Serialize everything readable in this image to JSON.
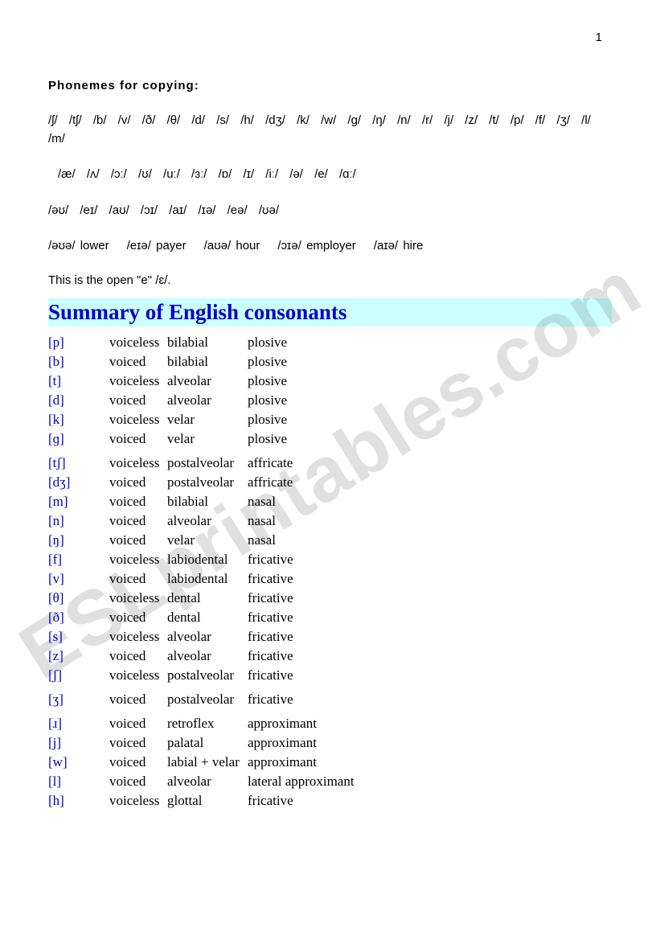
{
  "page_number": "1",
  "heading": "Phonemes for copying:",
  "consonant_phonemes": "/ʃ/   /tʃ/   /b/   /v/   /ð/   /θ/   /d/   /s/   /h/   /dʒ/   /k/   /w/   /g/   /ŋ/   /n/   /r/   /j/   /z/   /t/   /p/   /f/   /ʒ/   /l/   /m/",
  "vowel_phonemes": "/æ/   /ʌ/   /ɔː/   /ʊ/  /uː/   /ɜː/   /ɒ/   /ɪ/  /iː/   /ə/   /e/   /ɑː/",
  "diphthongs": "/əʊ/   /eɪ/   /aʊ/   /ɔɪ/   /aɪ/   /ɪə/   /eə/   /ʊə/",
  "triphthongs": [
    {
      "ph": "/əʊə/",
      "wd": "lower"
    },
    {
      "ph": "/eɪə/",
      "wd": "payer"
    },
    {
      "ph": "/aʊə/",
      "wd": "hour"
    },
    {
      "ph": "/ɔɪə/",
      "wd": "employer"
    },
    {
      "ph": "/aɪə/",
      "wd": "hire"
    }
  ],
  "open_e": "This is the open \"e\" /ɛ/.",
  "summary_title": "Summary of English consonants",
  "rows": [
    {
      "sym": "[p]",
      "voicing": "voiceless",
      "place": "bilabial",
      "manner": "plosive"
    },
    {
      "sym": "[b]",
      "voicing": "voiced",
      "place": "bilabial",
      "manner": "plosive"
    },
    {
      "sym": "[t]",
      "voicing": "voiceless",
      "place": "alveolar",
      "manner": "plosive"
    },
    {
      "sym": "[d]",
      "voicing": "voiced",
      "place": "alveolar",
      "manner": "plosive"
    },
    {
      "sym": "[k]",
      "voicing": "voiceless",
      "place": "velar",
      "manner": "plosive"
    },
    {
      "sym": "[ɡ]",
      "voicing": "voiced",
      "place": "velar",
      "manner": "plosive",
      "gap_after": true
    },
    {
      "sym": "[tʃ]",
      "voicing": "voiceless",
      "place": "postalveolar",
      "manner": "affricate"
    },
    {
      "sym": "[dʒ]",
      "voicing": "voiced",
      "place": "postalveolar",
      "manner": "affricate"
    },
    {
      "sym": "[m]",
      "voicing": "voiced",
      "place": "bilabial",
      "manner": "nasal"
    },
    {
      "sym": "[n]",
      "voicing": "voiced",
      "place": "alveolar",
      "manner": "nasal"
    },
    {
      "sym": "[ŋ]",
      "voicing": "voiced",
      "place": "velar",
      "manner": "nasal"
    },
    {
      "sym": "[f]",
      "voicing": "voiceless",
      "place": "labiodental",
      "manner": "fricative"
    },
    {
      "sym": "[v]",
      "voicing": "voiced",
      "place": "labiodental",
      "manner": "fricative"
    },
    {
      "sym": "[θ]",
      "voicing": "voiceless",
      "place": "dental",
      "manner": "fricative"
    },
    {
      "sym": "[ð]",
      "voicing": "voiced",
      "place": "dental",
      "manner": "fricative"
    },
    {
      "sym": "[s]",
      "voicing": "voiceless",
      "place": "alveolar",
      "manner": "fricative"
    },
    {
      "sym": "[z]",
      "voicing": "voiced",
      "place": "alveolar",
      "manner": "fricative"
    },
    {
      "sym": "[ʃ]",
      "voicing": "voiceless",
      "place": "postalveolar",
      "manner": "fricative",
      "gap_after": true
    },
    {
      "sym": "[ʒ]",
      "voicing": "voiced",
      "place": "postalveolar",
      "manner": "fricative",
      "gap_after": true
    },
    {
      "sym": "[ɹ]",
      "voicing": "voiced",
      "place": "retroflex",
      "manner": "approximant"
    },
    {
      "sym": "[j]",
      "voicing": "voiced",
      "place": "palatal",
      "manner": "approximant"
    },
    {
      "sym": "[w]",
      "voicing": "voiced",
      "place": "labial + velar",
      "manner": "approximant"
    },
    {
      "sym": "[l]",
      "voicing": "voiced",
      "place": "alveolar",
      "manner": "lateral approximant"
    },
    {
      "sym": "[h]",
      "voicing": "voiceless",
      "place": "glottal",
      "manner": "fricative"
    }
  ],
  "watermark": "ESLprintables.com",
  "colors": {
    "title_bg": "#ccffff",
    "title_fg": "#0000cc",
    "symbol_fg": "#0000cc",
    "text": "#000000",
    "watermark": "rgba(0,0,0,0.12)"
  }
}
